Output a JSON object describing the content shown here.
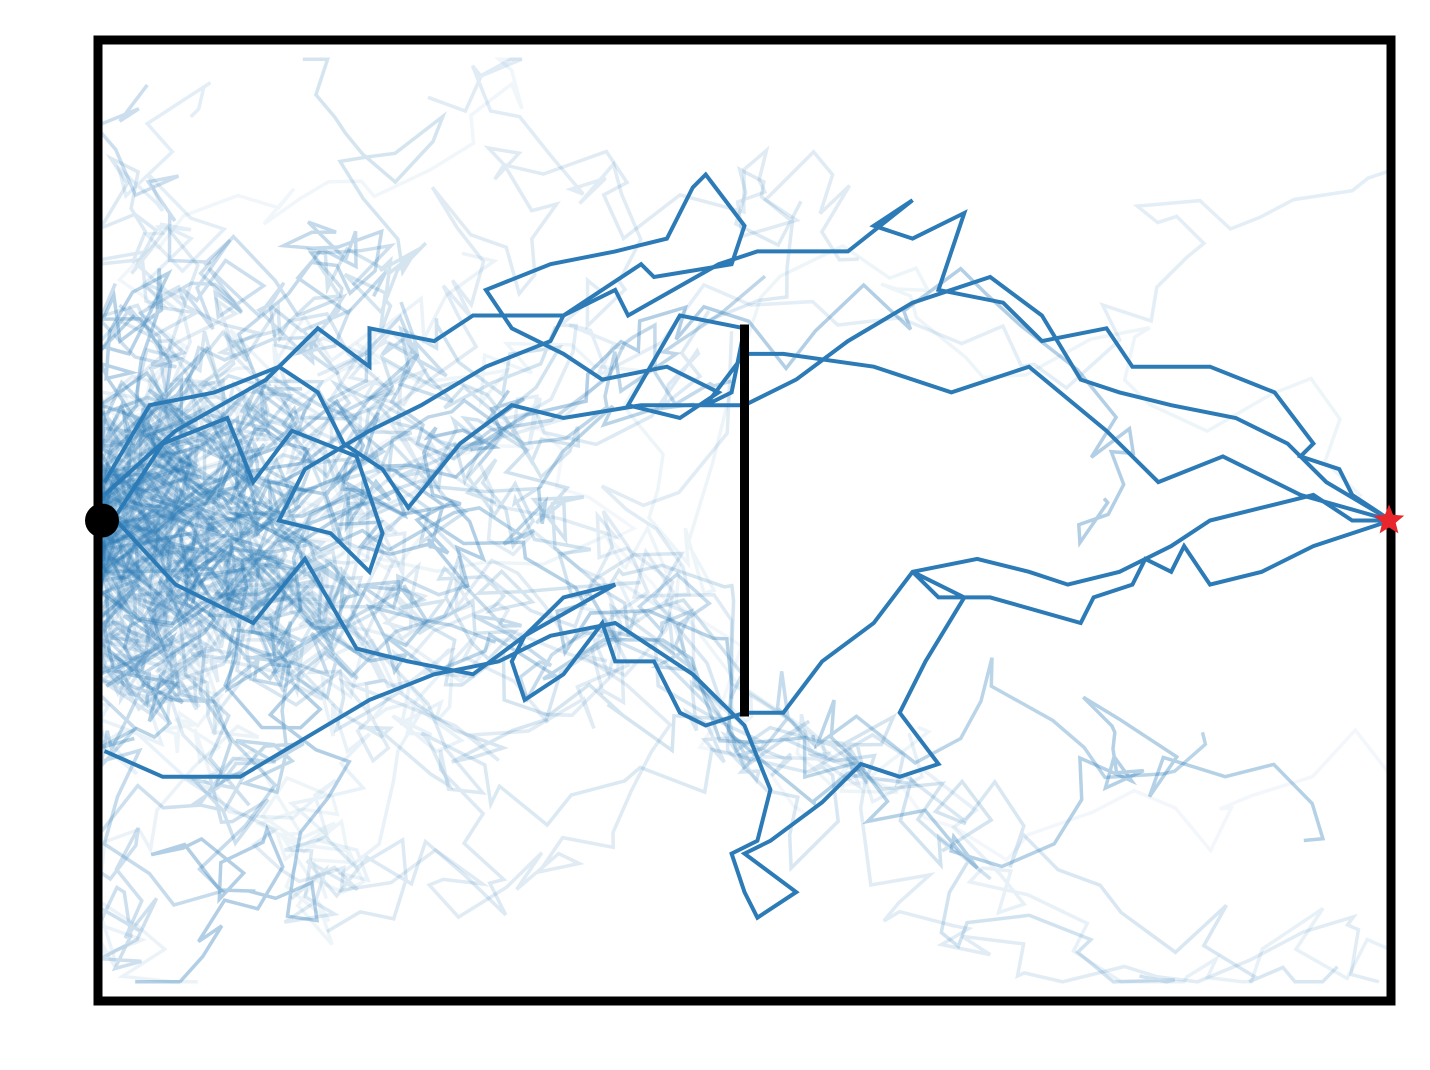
{
  "chart_data": {
    "type": "line",
    "title": "",
    "xlabel": "",
    "ylabel": "",
    "xlim": [
      0,
      10
    ],
    "ylim": [
      -3.75,
      3.75
    ],
    "grid": false,
    "ticks": false,
    "line_color": "#2c7bb6",
    "frame_color": "#000000",
    "start": {
      "x": 0,
      "y": 0,
      "marker": "circle",
      "color": "#000000"
    },
    "goal": {
      "x": 10,
      "y": 0,
      "marker": "star",
      "color": "#e8262b"
    },
    "wall": {
      "x": 5,
      "y_from": -1.53,
      "y_to": 1.53,
      "color": "#000000"
    },
    "primary_trajectories": [
      {
        "name": "",
        "points": [
          [
            0.05,
            0.2
          ],
          [
            0.6,
            0.7
          ],
          [
            1.3,
            1.1
          ],
          [
            1.5,
            1.3
          ],
          [
            1.7,
            1.5
          ],
          [
            2.1,
            1.2
          ],
          [
            2.1,
            1.5
          ],
          [
            2.6,
            1.4
          ],
          [
            2.9,
            1.6
          ],
          [
            3.6,
            1.6
          ],
          [
            4.0,
            1.8
          ],
          [
            4.1,
            1.6
          ],
          [
            4.8,
            2.0
          ],
          [
            5.1,
            2.1
          ],
          [
            5.6,
            2.1
          ],
          [
            5.8,
            2.1
          ],
          [
            6.3,
            2.5
          ],
          [
            6.0,
            2.3
          ],
          [
            6.3,
            2.2
          ],
          [
            6.7,
            2.4
          ],
          [
            6.5,
            1.8
          ],
          [
            7.0,
            1.7
          ],
          [
            7.3,
            1.4
          ],
          [
            7.8,
            1.5
          ],
          [
            8.0,
            1.2
          ],
          [
            8.6,
            1.2
          ],
          [
            9.1,
            1.0
          ],
          [
            9.4,
            0.6
          ],
          [
            9.3,
            0.5
          ],
          [
            9.6,
            0.4
          ],
          [
            9.7,
            0.2
          ],
          [
            10.0,
            0.0
          ]
        ]
      },
      {
        "name": "",
        "points": [
          [
            0.05,
            -0.1
          ],
          [
            0.5,
            0.6
          ],
          [
            1.0,
            0.8
          ],
          [
            1.2,
            0.3
          ],
          [
            1.5,
            0.7
          ],
          [
            2.0,
            0.5
          ],
          [
            2.1,
            0.2
          ],
          [
            2.2,
            -0.1
          ],
          [
            2.1,
            -0.4
          ],
          [
            1.8,
            -0.1
          ],
          [
            1.4,
            0.0
          ],
          [
            1.6,
            0.4
          ],
          [
            2.1,
            0.7
          ],
          [
            2.5,
            0.9
          ],
          [
            3.0,
            1.2
          ],
          [
            3.5,
            1.4
          ],
          [
            3.6,
            1.6
          ],
          [
            4.2,
            2.0
          ],
          [
            4.3,
            1.9
          ],
          [
            4.9,
            2.0
          ],
          [
            5.0,
            2.3
          ],
          [
            4.7,
            2.7
          ],
          [
            4.6,
            2.6
          ],
          [
            4.4,
            2.2
          ],
          [
            4.0,
            2.1
          ],
          [
            3.5,
            2.0
          ],
          [
            3.0,
            1.8
          ],
          [
            3.2,
            1.5
          ],
          [
            3.6,
            1.3
          ],
          [
            3.9,
            1.1
          ],
          [
            4.4,
            1.2
          ],
          [
            4.8,
            1.0
          ],
          [
            4.5,
            0.8
          ],
          [
            4.1,
            0.9
          ],
          [
            4.5,
            1.6
          ],
          [
            5.0,
            1.5
          ],
          [
            4.9,
            1.0
          ],
          [
            4.7,
            0.9
          ],
          [
            5.0,
            1.3
          ],
          [
            5.3,
            1.3
          ],
          [
            6.0,
            1.2
          ],
          [
            6.6,
            1.0
          ],
          [
            7.2,
            1.2
          ],
          [
            7.8,
            0.7
          ],
          [
            8.2,
            0.3
          ],
          [
            8.7,
            0.5
          ],
          [
            9.3,
            0.2
          ],
          [
            10.0,
            0.0
          ]
        ]
      },
      {
        "name": "",
        "points": [
          [
            0.05,
            -1.8
          ],
          [
            0.5,
            -2.0
          ],
          [
            1.1,
            -2.0
          ],
          [
            1.6,
            -1.7
          ],
          [
            2.1,
            -1.4
          ],
          [
            2.6,
            -1.2
          ],
          [
            3.1,
            -1.1
          ],
          [
            3.5,
            -0.9
          ],
          [
            4.0,
            -0.8
          ],
          [
            4.6,
            -1.2
          ],
          [
            5.0,
            -1.6
          ],
          [
            5.2,
            -2.1
          ],
          [
            5.1,
            -2.5
          ],
          [
            4.9,
            -2.6
          ],
          [
            5.0,
            -2.9
          ],
          [
            5.1,
            -3.1
          ],
          [
            5.4,
            -2.9
          ],
          [
            5.0,
            -2.6
          ],
          [
            5.2,
            -2.5
          ],
          [
            5.6,
            -2.2
          ],
          [
            5.9,
            -1.9
          ],
          [
            6.2,
            -2.0
          ],
          [
            6.5,
            -1.9
          ],
          [
            6.2,
            -1.5
          ],
          [
            6.4,
            -1.1
          ],
          [
            6.7,
            -0.6
          ],
          [
            6.3,
            -0.4
          ],
          [
            6.5,
            -0.6
          ],
          [
            6.9,
            -0.6
          ],
          [
            7.6,
            -0.8
          ],
          [
            7.7,
            -0.6
          ],
          [
            8.0,
            -0.5
          ],
          [
            8.1,
            -0.3
          ],
          [
            8.3,
            -0.4
          ],
          [
            8.4,
            -0.2
          ],
          [
            8.6,
            -0.5
          ],
          [
            9.0,
            -0.4
          ],
          [
            9.4,
            -0.2
          ],
          [
            10.0,
            0.0
          ]
        ]
      },
      {
        "name": "",
        "points": [
          [
            0.05,
            0.1
          ],
          [
            0.6,
            -0.5
          ],
          [
            1.2,
            -0.8
          ],
          [
            1.6,
            -0.3
          ],
          [
            2.0,
            -1.0
          ],
          [
            2.4,
            -1.1
          ],
          [
            2.9,
            -1.2
          ],
          [
            3.3,
            -0.9
          ],
          [
            4.0,
            -0.5
          ],
          [
            3.6,
            -0.6
          ],
          [
            3.3,
            -0.9
          ],
          [
            3.2,
            -1.1
          ],
          [
            3.3,
            -1.4
          ],
          [
            3.6,
            -1.2
          ],
          [
            3.9,
            -0.8
          ],
          [
            4.0,
            -1.1
          ],
          [
            4.3,
            -1.1
          ],
          [
            4.5,
            -1.5
          ],
          [
            4.7,
            -1.6
          ],
          [
            5.0,
            -1.5
          ],
          [
            5.3,
            -1.5
          ],
          [
            5.6,
            -1.1
          ],
          [
            6.0,
            -0.8
          ],
          [
            6.3,
            -0.4
          ],
          [
            6.8,
            -0.3
          ],
          [
            7.2,
            -0.4
          ],
          [
            7.5,
            -0.5
          ],
          [
            7.9,
            -0.4
          ],
          [
            8.3,
            -0.2
          ],
          [
            8.6,
            0.0
          ],
          [
            9.0,
            0.1
          ],
          [
            9.4,
            0.2
          ],
          [
            9.7,
            0.0
          ],
          [
            10.0,
            0.0
          ]
        ]
      },
      {
        "name": "",
        "points": [
          [
            0.05,
            0.3
          ],
          [
            0.4,
            0.9
          ],
          [
            0.9,
            1.0
          ],
          [
            1.4,
            1.2
          ],
          [
            1.7,
            1.0
          ],
          [
            1.9,
            0.6
          ],
          [
            2.2,
            0.4
          ],
          [
            2.4,
            0.1
          ],
          [
            2.8,
            0.6
          ],
          [
            3.2,
            0.9
          ],
          [
            3.6,
            0.8
          ],
          [
            4.2,
            0.9
          ],
          [
            4.8,
            0.9
          ],
          [
            5.0,
            0.9
          ],
          [
            5.4,
            1.1
          ],
          [
            5.8,
            1.4
          ],
          [
            6.3,
            1.7
          ],
          [
            6.9,
            1.9
          ],
          [
            7.3,
            1.6
          ],
          [
            7.6,
            1.1
          ],
          [
            7.9,
            1.0
          ],
          [
            8.3,
            0.9
          ],
          [
            8.8,
            0.8
          ],
          [
            9.2,
            0.6
          ],
          [
            9.5,
            0.3
          ],
          [
            10.0,
            0.0
          ]
        ]
      }
    ],
    "faded_trajectory_count": 70
  }
}
